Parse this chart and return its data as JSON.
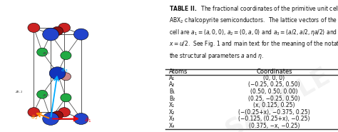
{
  "title": "TABLE II.",
  "atoms": [
    "A₁",
    "A₂",
    "B₁",
    "B₂",
    "X₁",
    "X₂",
    "X₃",
    "X₄"
  ],
  "coords_display": [
    "(0, 0, 0)",
    "(−0.25, 0.25, 0.50)",
    "(0.50, 0.50, 0.00)",
    "(0.25, −0.25, 0.50)",
    "(x, 0.125, 0.25)",
    "(−(0.25+x), −0.375, 0.25)",
    "(−0.125, (0.25+x), −0.25)",
    "(0.375, −x, −0.25)"
  ],
  "col_header_atoms": "Atoms",
  "col_header_coords": "Coordinates"
}
